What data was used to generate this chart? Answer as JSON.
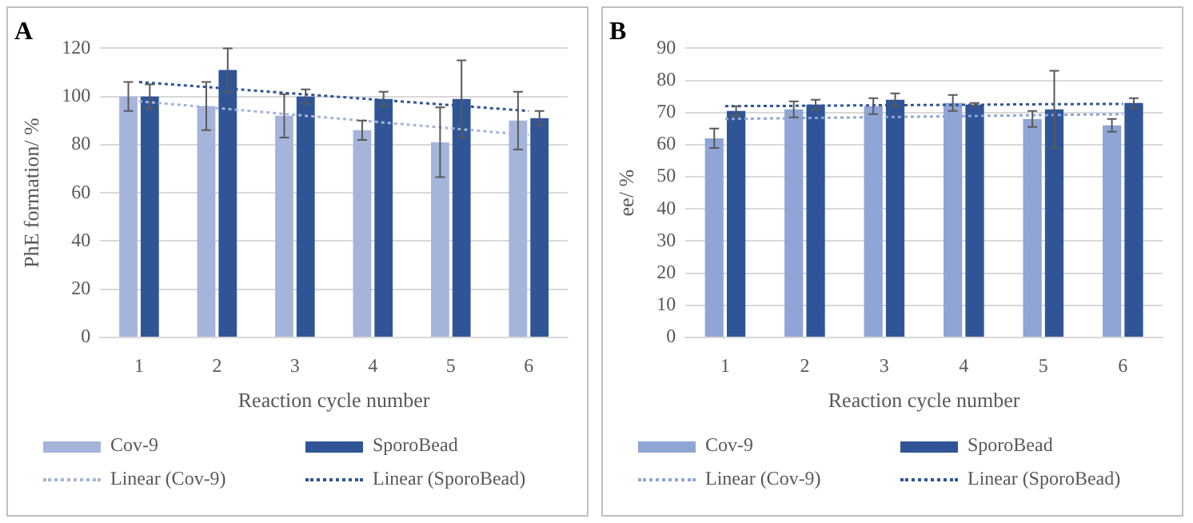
{
  "chart_data": [
    {
      "type": "bar",
      "title": "A",
      "xlabel": "Reaction cycle number",
      "ylabel": "PhE formation/ %",
      "categories": [
        "1",
        "2",
        "3",
        "4",
        "5",
        "6"
      ],
      "ylim": [
        0,
        120
      ],
      "yticks": [
        0,
        20,
        40,
        60,
        80,
        100,
        120
      ],
      "grid": "y",
      "legend": "bottom",
      "series": [
        {
          "name": "Cov-9",
          "color": "#a5b4db",
          "values": [
            100,
            96,
            92,
            86,
            81,
            90
          ],
          "errors": [
            6,
            10,
            9,
            4,
            14.5,
            12
          ]
        },
        {
          "name": "SporoBead",
          "color": "#2f5597",
          "values": [
            100,
            111,
            100,
            99,
            99,
            91
          ],
          "errors": [
            5,
            9,
            3,
            3,
            16,
            3
          ]
        },
        {
          "name": "Linear (Cov-9)",
          "type": "line",
          "line_style": "dotted",
          "color": "#a5b4db",
          "values": [
            98,
            95.2,
            92.4,
            89.6,
            86.8,
            84
          ]
        },
        {
          "name": "Linear (SporoBead)",
          "type": "line",
          "line_style": "dotted",
          "color": "#2f5597",
          "values": [
            106,
            103.6,
            101.2,
            98.8,
            96.4,
            94
          ]
        }
      ]
    },
    {
      "type": "bar",
      "title": "B",
      "xlabel": "Reaction cycle number",
      "ylabel": "ee/ %",
      "categories": [
        "1",
        "2",
        "3",
        "4",
        "5",
        "6"
      ],
      "ylim": [
        0,
        90
      ],
      "yticks": [
        0,
        10,
        20,
        30,
        40,
        50,
        60,
        70,
        80,
        90
      ],
      "grid": "y",
      "legend": "bottom",
      "series": [
        {
          "name": "Cov-9",
          "color": "#8fa5d6",
          "values": [
            62,
            71,
            72,
            73,
            68,
            66
          ],
          "errors": [
            3,
            2.5,
            2.5,
            2.5,
            2.5,
            2
          ]
        },
        {
          "name": "SporoBead",
          "color": "#2f5597",
          "values": [
            70.5,
            72.5,
            74,
            72.5,
            71,
            73
          ],
          "errors": [
            1.5,
            1.5,
            2,
            0.5,
            12,
            1.5
          ]
        },
        {
          "name": "Linear (Cov-9)",
          "type": "line",
          "line_style": "dotted",
          "color": "#8fa5d6",
          "values": [
            68,
            68.3,
            68.6,
            68.9,
            69.2,
            69.5
          ]
        },
        {
          "name": "Linear (SporoBead)",
          "type": "line",
          "line_style": "dotted",
          "color": "#2f5597",
          "values": [
            72,
            72.1,
            72.3,
            72.4,
            72.6,
            72.7
          ]
        }
      ]
    }
  ]
}
